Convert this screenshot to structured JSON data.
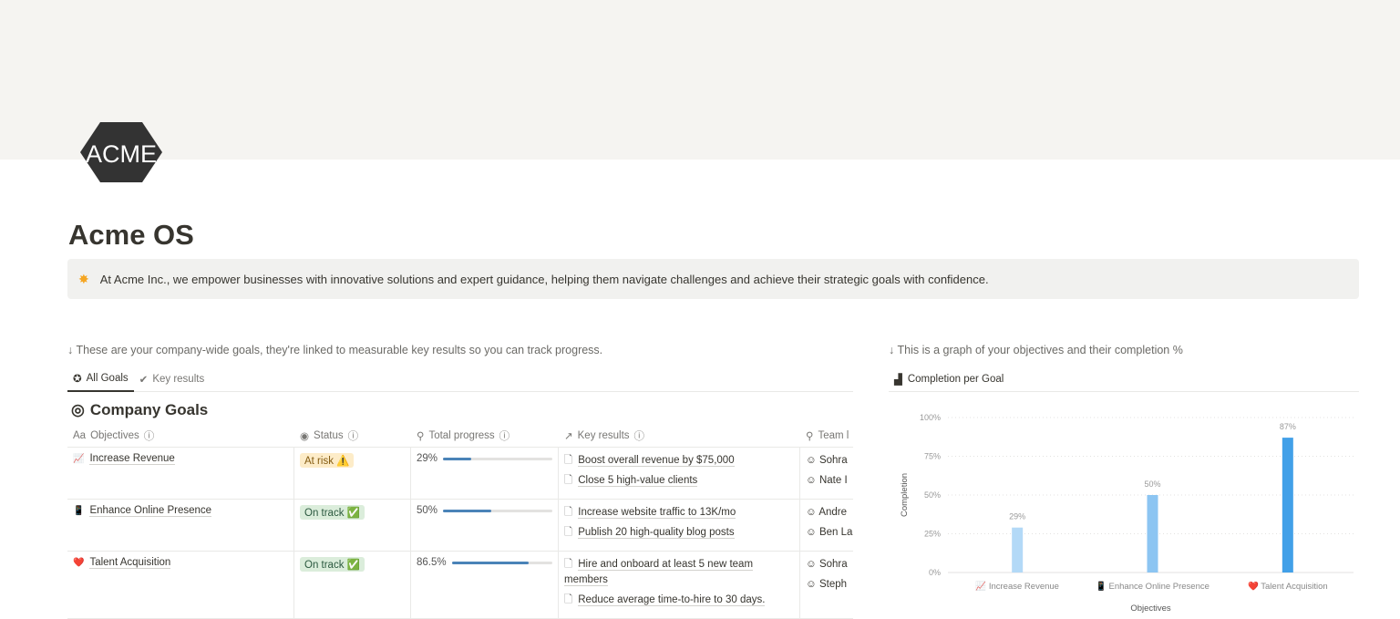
{
  "page": {
    "title": "Acme OS",
    "logo_text": "ACME",
    "callout_icon": "star-icon",
    "callout": "At Acme Inc., we empower businesses with innovative solutions and expert guidance, helping them navigate challenges and achieve their strategic goals with confidence."
  },
  "goals": {
    "note": "↓ These are your company-wide goals, they're linked to measurable key results so you can track progress.",
    "tabs": [
      {
        "label": "All Goals",
        "active": true
      },
      {
        "label": "Key results",
        "active": false
      }
    ],
    "db_title": "Company Goals",
    "columns": [
      "Objectives",
      "Status",
      "Total progress",
      "Key results",
      "Team l"
    ],
    "rows": [
      {
        "icon": "📈",
        "objective": "Increase Revenue",
        "status": "At risk ⚠️",
        "status_type": "risk",
        "progress_label": "29%",
        "progress": 29,
        "key_results": [
          "Boost overall revenue by $75,000",
          "Close 5 high-value clients"
        ],
        "team": [
          "Sohra",
          "Nate I"
        ]
      },
      {
        "icon": "📱",
        "objective": "Enhance Online Presence",
        "status": "On track ✅",
        "status_type": "ok",
        "progress_label": "50%",
        "progress": 50,
        "key_results": [
          "Increase website traffic to 13K/mo",
          "Publish 20 high-quality blog posts"
        ],
        "team": [
          "Andre",
          "Ben La"
        ]
      },
      {
        "icon": "❤️",
        "objective": "Talent Acquisition",
        "status": "On track ✅",
        "status_type": "ok",
        "progress_label": "86.5%",
        "progress": 86.5,
        "key_results": [
          "Hire and onboard at least 5 new team members",
          "Reduce average time-to-hire to 30 days."
        ],
        "team": [
          "Sohra",
          "Steph"
        ]
      }
    ]
  },
  "graph": {
    "note": "↓ This is a graph of your objectives and their completion %",
    "view_title": "Completion per Goal"
  },
  "chart_data": {
    "type": "bar",
    "categories": [
      "Increase Revenue",
      "Enhance Online Presence",
      "Talent Acquisition"
    ],
    "category_icons": [
      "📈",
      "📱",
      "❤️"
    ],
    "values": [
      29,
      50,
      87
    ],
    "data_labels": [
      "29%",
      "50%",
      "87%"
    ],
    "xlabel": "Objectives",
    "ylabel": "Completion",
    "ylim": [
      0,
      100
    ],
    "yticks": [
      "0%",
      "25%",
      "50%",
      "75%",
      "100%"
    ],
    "grid": true,
    "colors": [
      "#b3d9f7",
      "#8cc5f2",
      "#42a0e8"
    ]
  }
}
